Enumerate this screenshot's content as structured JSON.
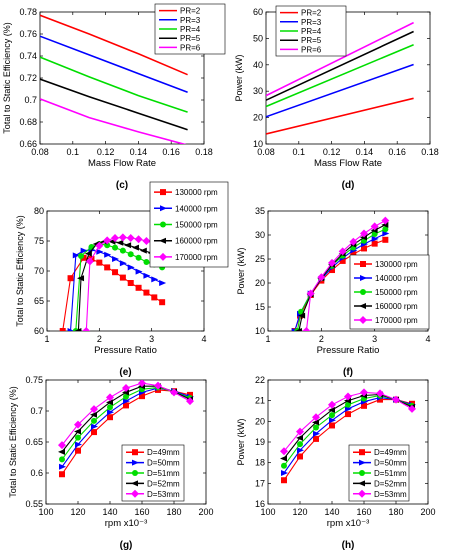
{
  "figure": {
    "background": "#ffffff"
  },
  "chart_data": [
    {
      "panel": "(c)",
      "type": "line",
      "xlabel": "Mass Flow Rate",
      "ylabel": "Total to Static Efficiency (%)",
      "xlim": [
        0.08,
        0.18
      ],
      "ylim": [
        0.66,
        0.78
      ],
      "xticks": [
        0.08,
        0.1,
        0.12,
        0.14,
        0.16,
        0.18
      ],
      "xtick_labels": [
        "0.08",
        "0.1",
        "0.12",
        "0.14",
        "0.16",
        "0.18"
      ],
      "yticks": [
        0.66,
        0.68,
        0.7,
        0.72,
        0.74,
        0.76,
        0.78
      ],
      "ytick_labels": [
        "0.66",
        "0.68",
        "0.7",
        "0.72",
        "0.74",
        "0.76",
        "0.78"
      ],
      "marker": "none",
      "legend_position": "top-right",
      "series": [
        {
          "name": "PR=2",
          "color": "#ff0000",
          "x": [
            0.08,
            0.11,
            0.14,
            0.17
          ],
          "y": [
            0.777,
            0.76,
            0.742,
            0.723
          ]
        },
        {
          "name": "PR=3",
          "color": "#0000ff",
          "x": [
            0.08,
            0.11,
            0.14,
            0.17
          ],
          "y": [
            0.758,
            0.741,
            0.724,
            0.707
          ]
        },
        {
          "name": "PR=4",
          "color": "#00dd00",
          "x": [
            0.08,
            0.11,
            0.14,
            0.17
          ],
          "y": [
            0.739,
            0.721,
            0.704,
            0.689
          ]
        },
        {
          "name": "PR=5",
          "color": "#000000",
          "x": [
            0.08,
            0.11,
            0.14,
            0.17
          ],
          "y": [
            0.719,
            0.703,
            0.688,
            0.673
          ]
        },
        {
          "name": "PR=6",
          "color": "#ff00ff",
          "x": [
            0.08,
            0.11,
            0.14,
            0.17
          ],
          "y": [
            0.701,
            0.684,
            0.671,
            0.659
          ]
        }
      ]
    },
    {
      "panel": "(d)",
      "type": "line",
      "xlabel": "Mass Flow Rate",
      "ylabel": "Power (kW)",
      "xlim": [
        0.08,
        0.18
      ],
      "ylim": [
        10,
        60
      ],
      "xticks": [
        0.08,
        0.1,
        0.12,
        0.14,
        0.16,
        0.18
      ],
      "xtick_labels": [
        "0.08",
        "0.1",
        "0.12",
        "0.14",
        "0.16",
        "0.18"
      ],
      "yticks": [
        10,
        20,
        30,
        40,
        50,
        60
      ],
      "ytick_labels": [
        "10",
        "20",
        "30",
        "40",
        "50",
        "60"
      ],
      "marker": "none",
      "legend_position": "top-left",
      "series": [
        {
          "name": "PR=2",
          "color": "#ff0000",
          "x": [
            0.08,
            0.17
          ],
          "y": [
            13.8,
            27.3
          ]
        },
        {
          "name": "PR=3",
          "color": "#0000ff",
          "x": [
            0.08,
            0.17
          ],
          "y": [
            20.3,
            40.1
          ]
        },
        {
          "name": "PR=4",
          "color": "#00dd00",
          "x": [
            0.08,
            0.17
          ],
          "y": [
            24.2,
            47.6
          ]
        },
        {
          "name": "PR=5",
          "color": "#000000",
          "x": [
            0.08,
            0.17
          ],
          "y": [
            26.6,
            52.6
          ]
        },
        {
          "name": "PR=6",
          "color": "#ff00ff",
          "x": [
            0.08,
            0.17
          ],
          "y": [
            28.3,
            56.0
          ]
        }
      ]
    },
    {
      "panel": "(e)",
      "type": "line",
      "xlabel": "Pressure Ratio",
      "ylabel": "Total to Static Efficiency (%)",
      "xlim": [
        1,
        4
      ],
      "ylim": [
        60,
        80
      ],
      "xticks": [
        1,
        2,
        3,
        4
      ],
      "xtick_labels": [
        "1",
        "2",
        "3",
        "4"
      ],
      "yticks": [
        60,
        65,
        70,
        75,
        80
      ],
      "ytick_labels": [
        "60",
        "65",
        "70",
        "75",
        "80"
      ],
      "marker": "yes",
      "legend_position": "top-right",
      "series": [
        {
          "name": "130000 rpm",
          "color": "#ff0000",
          "marker": "square",
          "x": [
            1.3,
            1.45,
            1.7,
            1.85,
            2.0,
            2.15,
            2.3,
            2.45,
            2.6,
            2.75,
            2.9,
            3.05,
            3.2
          ],
          "y": [
            60,
            68.8,
            72.2,
            72.0,
            71.4,
            70.6,
            69.8,
            68.9,
            68.0,
            67.2,
            66.4,
            65.6,
            64.8
          ]
        },
        {
          "name": "140000 rpm",
          "color": "#0000ff",
          "marker": "triangle-right",
          "x": [
            1.45,
            1.55,
            1.7,
            1.85,
            2.0,
            2.15,
            2.3,
            2.45,
            2.6,
            2.75,
            2.9,
            3.05,
            3.2
          ],
          "y": [
            60,
            72.6,
            73.4,
            73.5,
            73.2,
            72.7,
            72.0,
            71.3,
            70.6,
            69.9,
            69.2,
            68.6,
            68.0
          ]
        },
        {
          "name": "150000 rpm",
          "color": "#00dd00",
          "marker": "circle",
          "x": [
            1.55,
            1.65,
            1.85,
            2.0,
            2.15,
            2.3,
            2.45,
            2.6,
            2.75,
            2.9,
            3.05,
            3.2
          ],
          "y": [
            60,
            72.5,
            74.0,
            74.5,
            74.3,
            73.9,
            73.4,
            72.8,
            72.2,
            71.5,
            71.1,
            70.6
          ]
        },
        {
          "name": "160000 rpm",
          "color": "#000000",
          "marker": "triangle-left",
          "x": [
            1.6,
            1.65,
            1.8,
            1.95,
            2.1,
            2.25,
            2.4,
            2.55,
            2.7,
            2.85,
            3.0,
            3.2
          ],
          "y": [
            60,
            68.8,
            72.9,
            74.5,
            74.9,
            74.9,
            74.7,
            74.3,
            73.9,
            73.4,
            73.0,
            72.6
          ]
        },
        {
          "name": "170000 rpm",
          "color": "#ff00ff",
          "marker": "diamond",
          "x": [
            1.75,
            1.82,
            2.0,
            2.15,
            2.3,
            2.45,
            2.6,
            2.75,
            2.9,
            3.05,
            3.2
          ],
          "y": [
            60,
            71.6,
            74.2,
            75.1,
            75.5,
            75.6,
            75.5,
            75.3,
            75.0,
            74.6,
            74.2
          ]
        }
      ]
    },
    {
      "panel": "(f)",
      "type": "line",
      "xlabel": "Pressure Ratio",
      "ylabel": "Power (kW)",
      "xlim": [
        1,
        4
      ],
      "ylim": [
        10,
        35
      ],
      "xticks": [
        1,
        2,
        3,
        4
      ],
      "xtick_labels": [
        "1",
        "2",
        "3",
        "4"
      ],
      "yticks": [
        10,
        15,
        20,
        25,
        30,
        35
      ],
      "ytick_labels": [
        "10",
        "15",
        "20",
        "25",
        "30",
        "35"
      ],
      "marker": "yes",
      "legend_position": "bottom-right",
      "series": [
        {
          "name": "130000 rpm",
          "color": "#ff0000",
          "marker": "square",
          "x": [
            1.5,
            1.6,
            1.8,
            2.0,
            2.2,
            2.4,
            2.6,
            2.8,
            3.0,
            3.2
          ],
          "y": [
            10,
            13.2,
            17.5,
            20.5,
            22.7,
            24.6,
            26.0,
            27.2,
            28.2,
            29.0
          ]
        },
        {
          "name": "140000 rpm",
          "color": "#0000ff",
          "marker": "triangle-right",
          "x": [
            1.5,
            1.6,
            1.8,
            2.0,
            2.2,
            2.4,
            2.6,
            2.8,
            3.0,
            3.2
          ],
          "y": [
            10,
            13.6,
            17.8,
            20.8,
            23.2,
            25.2,
            26.8,
            28.1,
            29.2,
            30.3
          ]
        },
        {
          "name": "150000 rpm",
          "color": "#00dd00",
          "marker": "circle",
          "x": [
            1.55,
            1.62,
            1.8,
            2.0,
            2.2,
            2.4,
            2.6,
            2.8,
            3.0,
            3.2
          ],
          "y": [
            10,
            14.0,
            17.8,
            21.0,
            23.6,
            25.7,
            27.4,
            28.8,
            30.2,
            31.2
          ]
        },
        {
          "name": "160000 rpm",
          "color": "#000000",
          "marker": "triangle-left",
          "x": [
            1.58,
            1.64,
            1.8,
            2.0,
            2.2,
            2.4,
            2.6,
            2.8,
            3.0,
            3.2
          ],
          "y": [
            10,
            13.2,
            17.6,
            21.0,
            23.8,
            26.1,
            28.0,
            29.5,
            31.0,
            32.1
          ]
        },
        {
          "name": "170000 rpm",
          "color": "#ff00ff",
          "marker": "diamond",
          "x": [
            1.72,
            1.8,
            2.0,
            2.2,
            2.4,
            2.6,
            2.8,
            3.0,
            3.2
          ],
          "y": [
            10,
            17.8,
            21.2,
            24.2,
            26.6,
            28.6,
            30.3,
            31.8,
            33.0
          ]
        }
      ]
    },
    {
      "panel": "(g)",
      "type": "line",
      "xlabel": "rpm x10⁻³",
      "ylabel": "Total to Static Efficiency (%)",
      "xlim": [
        100,
        200
      ],
      "ylim": [
        0.55,
        0.75
      ],
      "xticks": [
        100,
        120,
        140,
        160,
        180,
        200
      ],
      "xtick_labels": [
        "100",
        "120",
        "140",
        "160",
        "180",
        "200"
      ],
      "yticks": [
        0.55,
        0.6,
        0.65,
        0.7,
        0.75
      ],
      "ytick_labels": [
        "0.55",
        "0.6",
        "0.65",
        "0.7",
        "0.75"
      ],
      "marker": "yes",
      "legend_position": "bottom-right",
      "series": [
        {
          "name": "D=49mm",
          "color": "#ff0000",
          "marker": "square",
          "x": [
            110,
            120,
            130,
            140,
            150,
            160,
            170,
            180,
            190
          ],
          "y": [
            0.598,
            0.636,
            0.666,
            0.69,
            0.709,
            0.724,
            0.734,
            0.732,
            0.726
          ]
        },
        {
          "name": "D=50mm",
          "color": "#0000ff",
          "marker": "triangle-right",
          "x": [
            110,
            120,
            130,
            140,
            150,
            160,
            170,
            180,
            190
          ],
          "y": [
            0.61,
            0.646,
            0.675,
            0.698,
            0.716,
            0.73,
            0.737,
            0.732,
            0.723
          ]
        },
        {
          "name": "D=51mm",
          "color": "#00dd00",
          "marker": "circle",
          "x": [
            110,
            120,
            130,
            140,
            150,
            160,
            170,
            180,
            190
          ],
          "y": [
            0.622,
            0.657,
            0.684,
            0.706,
            0.723,
            0.735,
            0.738,
            0.731,
            0.721
          ]
        },
        {
          "name": "D=52mm",
          "color": "#000000",
          "marker": "triangle-left",
          "x": [
            110,
            120,
            130,
            140,
            150,
            160,
            170,
            180,
            190
          ],
          "y": [
            0.634,
            0.667,
            0.694,
            0.714,
            0.73,
            0.74,
            0.74,
            0.731,
            0.719
          ]
        },
        {
          "name": "D=53mm",
          "color": "#ff00ff",
          "marker": "diamond",
          "x": [
            110,
            120,
            130,
            140,
            150,
            160,
            170,
            180,
            190
          ],
          "y": [
            0.645,
            0.678,
            0.703,
            0.722,
            0.737,
            0.745,
            0.741,
            0.73,
            0.716
          ]
        }
      ]
    },
    {
      "panel": "(h)",
      "type": "line",
      "xlabel": "rpm x10⁻³",
      "ylabel": "Power (kW)",
      "xlim": [
        100,
        200
      ],
      "ylim": [
        16,
        22
      ],
      "xticks": [
        100,
        120,
        140,
        160,
        180,
        200
      ],
      "xtick_labels": [
        "100",
        "120",
        "140",
        "160",
        "180",
        "200"
      ],
      "yticks": [
        16,
        17,
        18,
        19,
        20,
        21,
        22
      ],
      "ytick_labels": [
        "16",
        "17",
        "18",
        "19",
        "20",
        "21",
        "22"
      ],
      "marker": "yes",
      "legend_position": "bottom-right",
      "series": [
        {
          "name": "D=49mm",
          "color": "#ff0000",
          "marker": "square",
          "x": [
            110,
            120,
            130,
            140,
            150,
            160,
            170,
            180,
            190
          ],
          "y": [
            17.15,
            18.3,
            19.15,
            19.8,
            20.35,
            20.75,
            21.05,
            21.05,
            20.85
          ]
        },
        {
          "name": "D=50mm",
          "color": "#0000ff",
          "marker": "triangle-right",
          "x": [
            110,
            120,
            130,
            140,
            150,
            160,
            170,
            180,
            190
          ],
          "y": [
            17.5,
            18.6,
            19.4,
            20.05,
            20.6,
            20.95,
            21.15,
            21.05,
            20.8
          ]
        },
        {
          "name": "D=51mm",
          "color": "#00dd00",
          "marker": "circle",
          "x": [
            110,
            120,
            130,
            140,
            150,
            160,
            170,
            180,
            190
          ],
          "y": [
            17.85,
            18.9,
            19.7,
            20.3,
            20.8,
            21.1,
            21.25,
            21.05,
            20.75
          ]
        },
        {
          "name": "D=52mm",
          "color": "#000000",
          "marker": "triangle-left",
          "x": [
            110,
            120,
            130,
            140,
            150,
            160,
            170,
            180,
            190
          ],
          "y": [
            18.2,
            19.2,
            19.95,
            20.55,
            21.0,
            21.25,
            21.3,
            21.05,
            20.7
          ]
        },
        {
          "name": "D=53mm",
          "color": "#ff00ff",
          "marker": "diamond",
          "x": [
            110,
            120,
            130,
            140,
            150,
            160,
            170,
            180,
            190
          ],
          "y": [
            18.55,
            19.5,
            20.2,
            20.8,
            21.2,
            21.4,
            21.35,
            21.05,
            20.6
          ]
        }
      ]
    }
  ]
}
